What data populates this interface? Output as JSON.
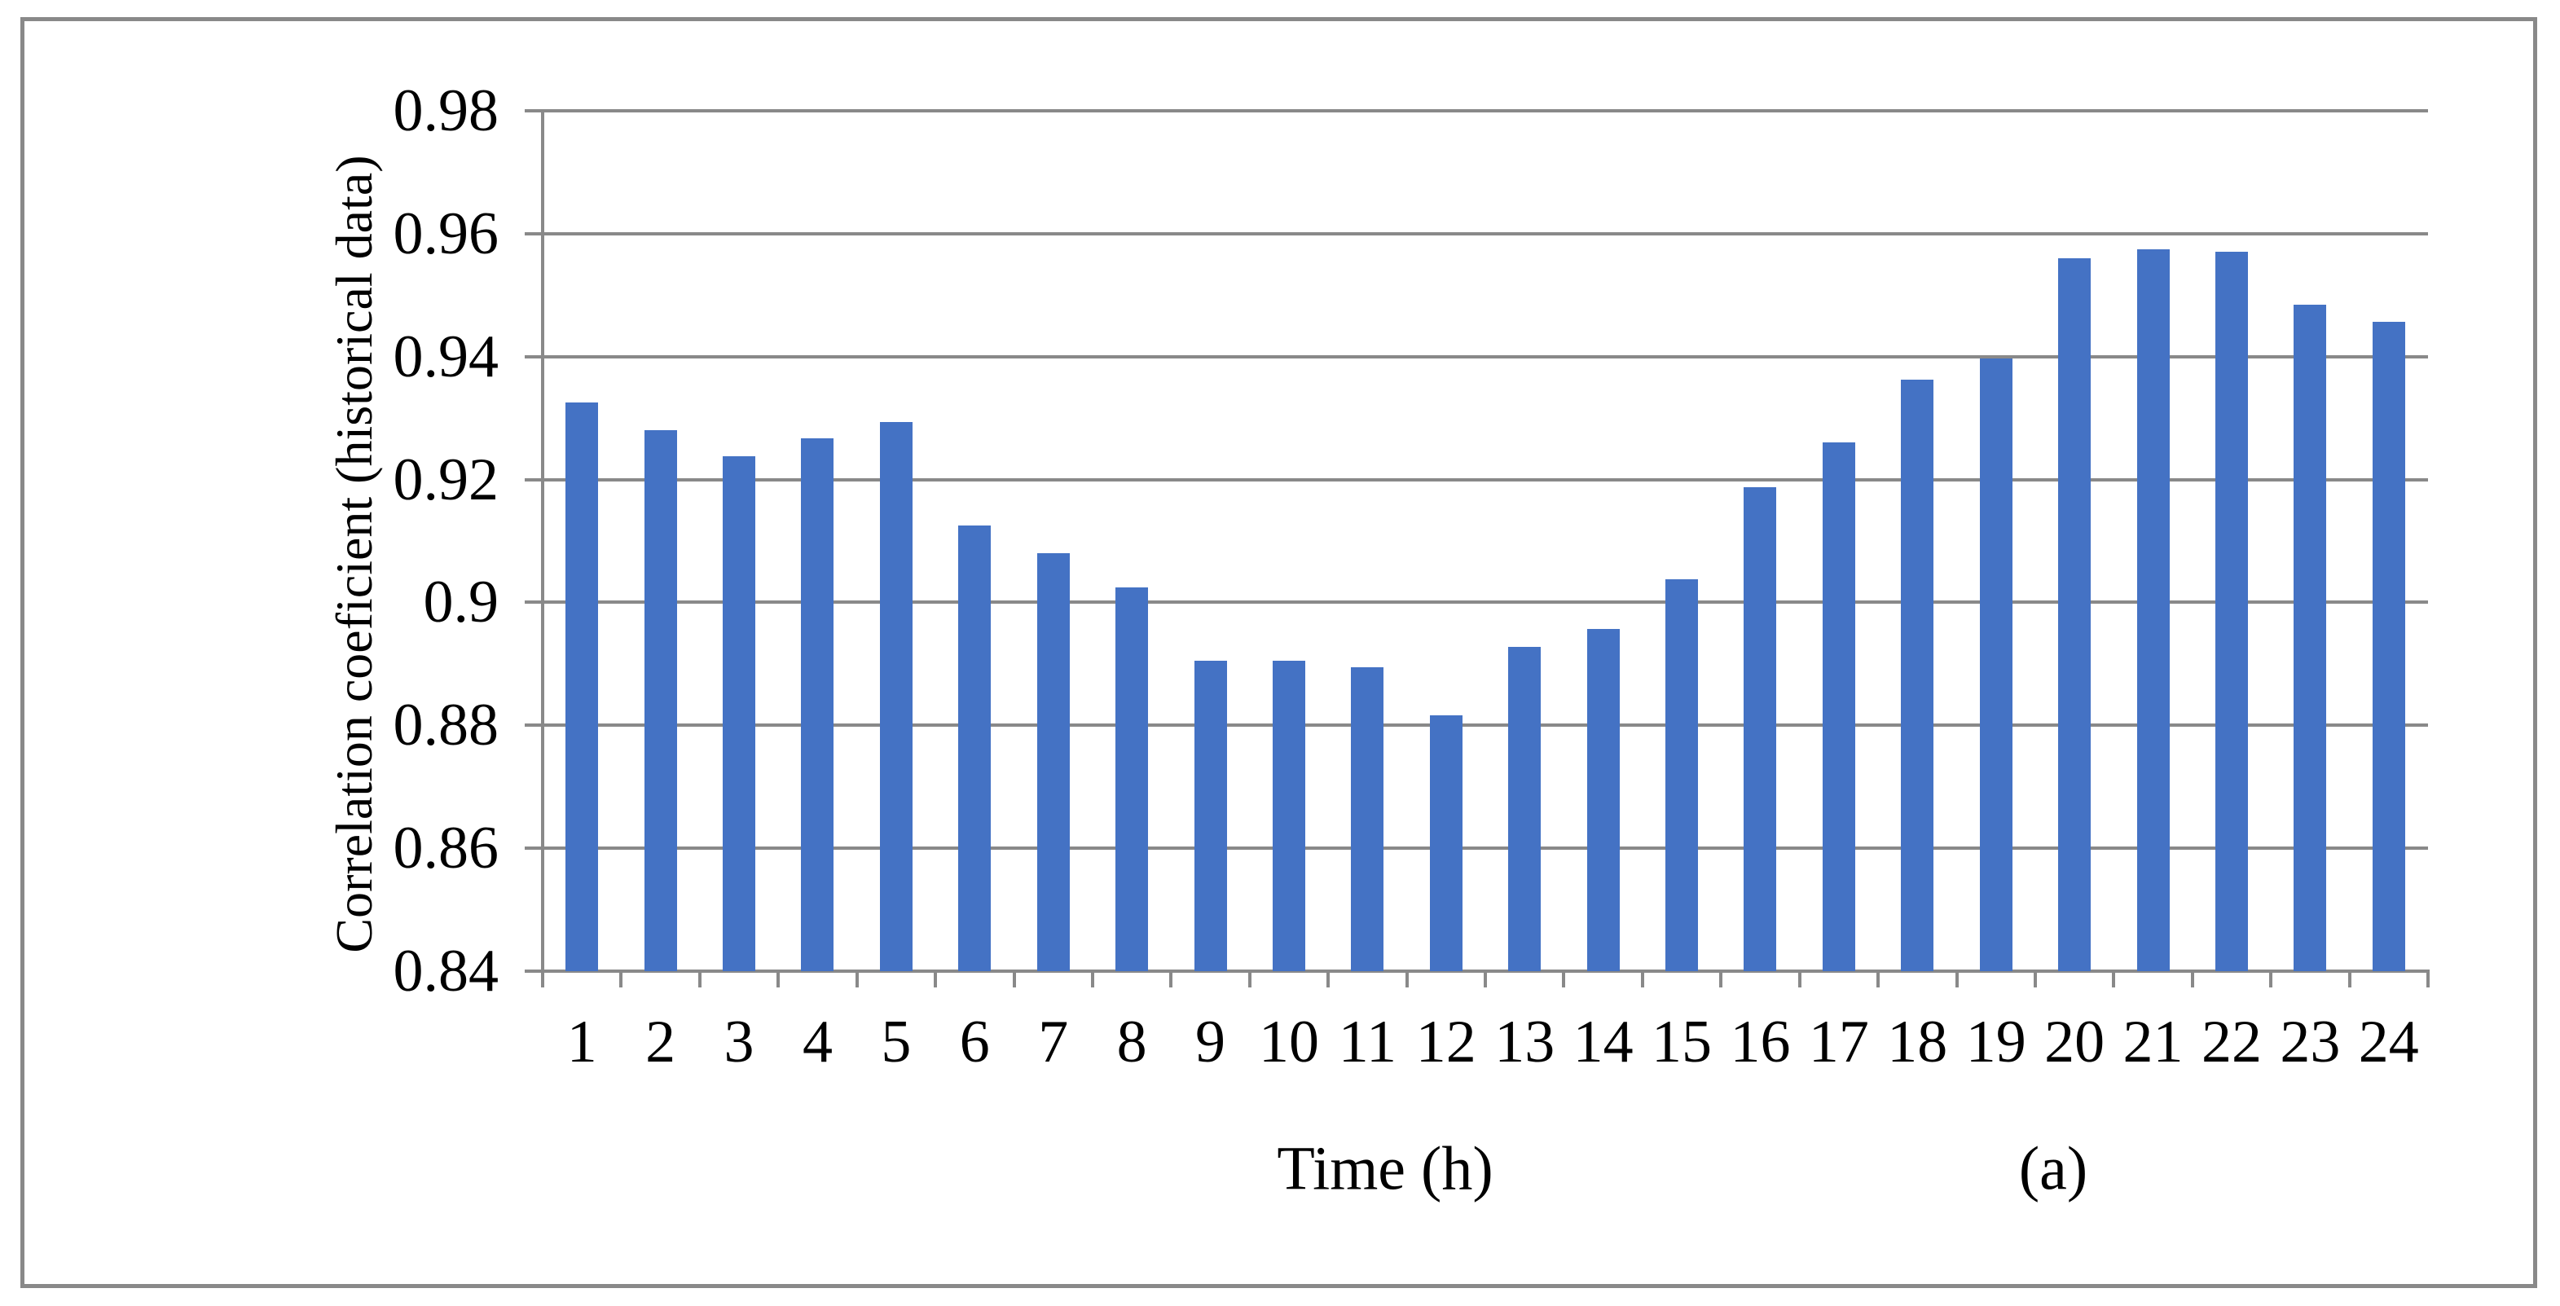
{
  "figure": {
    "y_axis_title": "Correlation coeficient (historical data)",
    "x_axis_title": "Time (h)",
    "panel_label": "(a)"
  },
  "colors": {
    "bar": "#4472C4",
    "axis_and_grid": "#898989",
    "text": "#000000",
    "background": "#FFFFFF"
  },
  "chart_data": {
    "type": "bar",
    "title": "",
    "xlabel": "Time (h)",
    "ylabel": "Correlation coeficient (historical data)",
    "categories": [
      "1",
      "2",
      "3",
      "4",
      "5",
      "6",
      "7",
      "8",
      "9",
      "10",
      "11",
      "12",
      "13",
      "14",
      "15",
      "16",
      "17",
      "18",
      "19",
      "20",
      "21",
      "22",
      "23",
      "24"
    ],
    "values": [
      0.9325,
      0.928,
      0.9238,
      0.9267,
      0.9293,
      0.9125,
      0.908,
      0.9025,
      0.8905,
      0.8905,
      0.8895,
      0.8816,
      0.8928,
      0.8957,
      0.9038,
      0.9188,
      0.926,
      0.9362,
      0.9397,
      0.956,
      0.9574,
      0.9571,
      0.9485,
      0.9456
    ],
    "ylim": [
      0.84,
      0.98
    ],
    "ytick_values": [
      0.98,
      0.96,
      0.94,
      0.92,
      0.9,
      0.88,
      0.86,
      0.84
    ],
    "ytick_labels": [
      "0.98",
      "0.96",
      "0.94",
      "0.92",
      "0.9",
      "0.88",
      "0.86",
      "0.84"
    ],
    "grid": true,
    "legend_position": "none",
    "bar_color": "#4472C4"
  }
}
